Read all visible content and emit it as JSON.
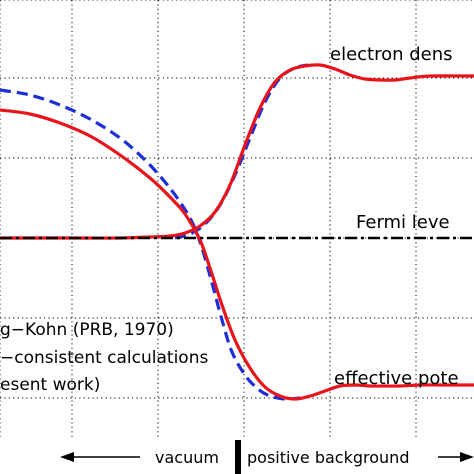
{
  "chart_data": {
    "type": "line",
    "title": "",
    "xlabel": "",
    "ylabel": "",
    "grid": true,
    "x_grid": [
      0,
      72,
      158,
      244,
      330,
      416
    ],
    "y_grid": [
      0,
      78,
      158,
      238,
      318,
      398
    ],
    "series": [
      {
        "name": "",
        "role": "electron density, self-consistent",
        "color": "#e8141c",
        "style": "solid",
        "points": [
          [
            0,
            238
          ],
          [
            40,
            238
          ],
          [
            80,
            238
          ],
          [
            120,
            238
          ],
          [
            150,
            237
          ],
          [
            170,
            236
          ],
          [
            185,
            233
          ],
          [
            200,
            226
          ],
          [
            215,
            212
          ],
          [
            230,
            185
          ],
          [
            245,
            145
          ],
          [
            260,
            108
          ],
          [
            275,
            82
          ],
          [
            290,
            70
          ],
          [
            305,
            66
          ],
          [
            320,
            65
          ],
          [
            335,
            69
          ],
          [
            350,
            75
          ],
          [
            365,
            79
          ],
          [
            380,
            80
          ],
          [
            395,
            80
          ],
          [
            410,
            78
          ],
          [
            430,
            76
          ],
          [
            474,
            76
          ]
        ]
      },
      {
        "name": "",
        "role": "electron density, Lang-Kohn",
        "color": "#1c2ed8",
        "style": "dashed",
        "points": [
          [
            175,
            238
          ],
          [
            190,
            234
          ],
          [
            205,
            224
          ],
          [
            220,
            205
          ],
          [
            235,
            175
          ],
          [
            250,
            138
          ],
          [
            265,
            102
          ],
          [
            280,
            78
          ],
          [
            295,
            68
          ],
          [
            308,
            65
          ]
        ]
      },
      {
        "name": "",
        "role": "effective potential, self-consistent",
        "color": "#e8141c",
        "style": "solid",
        "points": [
          [
            0,
            110
          ],
          [
            30,
            114
          ],
          [
            60,
            123
          ],
          [
            90,
            136
          ],
          [
            120,
            155
          ],
          [
            150,
            178
          ],
          [
            170,
            197
          ],
          [
            185,
            214
          ],
          [
            200,
            240
          ],
          [
            210,
            268
          ],
          [
            222,
            305
          ],
          [
            235,
            340
          ],
          [
            250,
            368
          ],
          [
            265,
            387
          ],
          [
            280,
            396
          ],
          [
            295,
            399
          ],
          [
            310,
            396
          ],
          [
            325,
            391
          ],
          [
            340,
            386
          ],
          [
            355,
            385
          ],
          [
            370,
            386
          ],
          [
            385,
            386
          ],
          [
            400,
            386
          ],
          [
            420,
            385
          ],
          [
            440,
            385
          ],
          [
            474,
            385
          ]
        ]
      },
      {
        "name": "",
        "role": "effective potential, Lang-Kohn",
        "color": "#1c2ed8",
        "style": "dashed",
        "points": [
          [
            0,
            90
          ],
          [
            30,
            95
          ],
          [
            60,
            105
          ],
          [
            90,
            119
          ],
          [
            120,
            138
          ],
          [
            145,
            160
          ],
          [
            165,
            182
          ],
          [
            180,
            202
          ],
          [
            192,
            222
          ],
          [
            202,
            248
          ],
          [
            212,
            283
          ],
          [
            222,
            320
          ],
          [
            232,
            352
          ],
          [
            245,
            375
          ],
          [
            258,
            389
          ],
          [
            270,
            396
          ],
          [
            285,
            399
          ],
          [
            300,
            398
          ]
        ]
      },
      {
        "name": "Fermi level",
        "role": "fermi level",
        "color": "#000000",
        "style": "dashdot",
        "points": [
          [
            0,
            238
          ],
          [
            474,
            238
          ]
        ]
      }
    ],
    "annotations": {
      "electron_density": "electron dens",
      "fermi_level": "Fermi leve",
      "effective_potential": "effective pote",
      "legend_line1": "g−Kohn (PRB, 1970)",
      "legend_line2": "−consistent calculations",
      "legend_line3": "esent work)",
      "vacuum": "vacuum",
      "positive_background": "positive background"
    },
    "colors": {
      "red": "#e8141c",
      "blue": "#1c2ed8",
      "black": "#000000"
    }
  }
}
